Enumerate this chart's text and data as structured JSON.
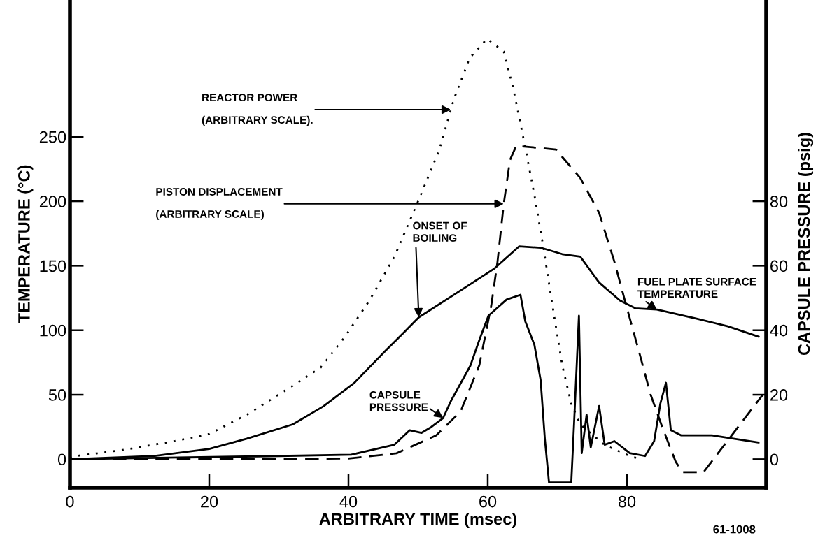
{
  "chart_data": {
    "type": "line",
    "xlabel": "ARBITRARY TIME (msec)",
    "ylabel": "TEMPERATURE (°C)",
    "y2label": "CAPSULE PRESSURE (psig)",
    "xlim": [
      0,
      100
    ],
    "ylim": [
      -22,
      356
    ],
    "y2lim": [
      -8.8,
      142.4
    ],
    "xticks": [
      0,
      20,
      40,
      60,
      80
    ],
    "yticks": [
      0,
      50,
      100,
      150,
      200,
      250
    ],
    "y2ticks": [
      0,
      20,
      40,
      60,
      80
    ],
    "series": [
      {
        "name": "REACTOR POWER\n(ARBITRARY SCALE).",
        "color": "#000000",
        "line_style": "dotted",
        "x": [
          0,
          1,
          7.4,
          15,
          20,
          25.4,
          32,
          36,
          39.5,
          43,
          46.6,
          50,
          53,
          54.7,
          55.2,
          57.4,
          59.9,
          62.3,
          63.6,
          64.9,
          66.7,
          68,
          69.3,
          70.7,
          72,
          73.3,
          76.8,
          80.4,
          82
        ],
        "values": [
          1,
          2.6,
          7,
          14,
          19.6,
          34.5,
          57,
          71,
          95,
          123,
          157,
          200,
          239,
          271,
          280,
          311,
          326,
          316,
          289,
          255,
          205,
          164,
          119,
          73,
          43,
          27,
          11,
          2.5,
          0
        ]
      },
      {
        "name": "PISTON DISPLACEMENT\n(ARBITRARY SCALE)",
        "color": "#000000",
        "line_style": "dashed",
        "x": [
          0,
          40,
          46.9,
          52.6,
          56.1,
          58.8,
          60.5,
          61.4,
          62.3,
          63.2,
          64.1,
          69.8,
          73.3,
          76,
          78.2,
          79.9,
          81.7,
          83.4,
          85.2,
          87,
          88,
          91,
          99.5
        ],
        "values": [
          0,
          0.5,
          4.6,
          18.5,
          37,
          73,
          119,
          153,
          198,
          232,
          243,
          240,
          218,
          191,
          153,
          119,
          84,
          50,
          23,
          -2,
          -10,
          -10,
          50
        ]
      },
      {
        "name": "FUEL PLATE SURFACE\nTEMPERATURE",
        "color": "#000000",
        "line_style": "solid",
        "x": [
          0,
          12.2,
          20,
          25.4,
          32,
          36.4,
          40.8,
          45.3,
          47.9,
          50.1,
          55,
          61,
          64.5,
          67.6,
          70.7,
          73.3,
          76,
          79,
          81.2,
          84.3,
          90,
          94.5,
          98.9
        ],
        "values": [
          0,
          2.6,
          8,
          16,
          27,
          41,
          59,
          84,
          98,
          110,
          127,
          148,
          165,
          164,
          159,
          157,
          137,
          123,
          117,
          116,
          109,
          103,
          95
        ]
      },
      {
        "name": "CAPSULE\nPRESSURE",
        "color": "#000000",
        "line_style": "solid",
        "axis": "y2",
        "x": [
          0,
          30,
          40.4,
          46.6,
          48.8,
          50.5,
          51.9,
          53.6,
          54.7,
          57.5,
          58.8,
          60.1,
          62.7,
          64.7,
          65.4,
          66.7,
          67.6,
          68.2,
          68.8,
          72,
          72.4,
          73.1,
          73.5,
          74.2,
          74.8,
          76,
          76.8,
          78.2,
          80.4,
          82.6,
          83.9,
          84.8,
          85.6,
          86.3,
          87.8,
          92.2,
          98.9
        ],
        "values": [
          0,
          1,
          1.4,
          4.5,
          9,
          8.2,
          10,
          12.8,
          18,
          29,
          37,
          44.5,
          49.5,
          51,
          42.7,
          35.5,
          24.5,
          6.4,
          -7.2,
          -7.2,
          11,
          44.5,
          1.9,
          13.8,
          3.7,
          16.5,
          4.5,
          5.6,
          1.9,
          1,
          5.6,
          17.3,
          23.7,
          9,
          7.4,
          7.4,
          5.2
        ]
      }
    ],
    "annotations": [
      {
        "text": "ONSET OF\nBOILING",
        "x": 50.1,
        "y": 110
      },
      "61-1008"
    ]
  }
}
